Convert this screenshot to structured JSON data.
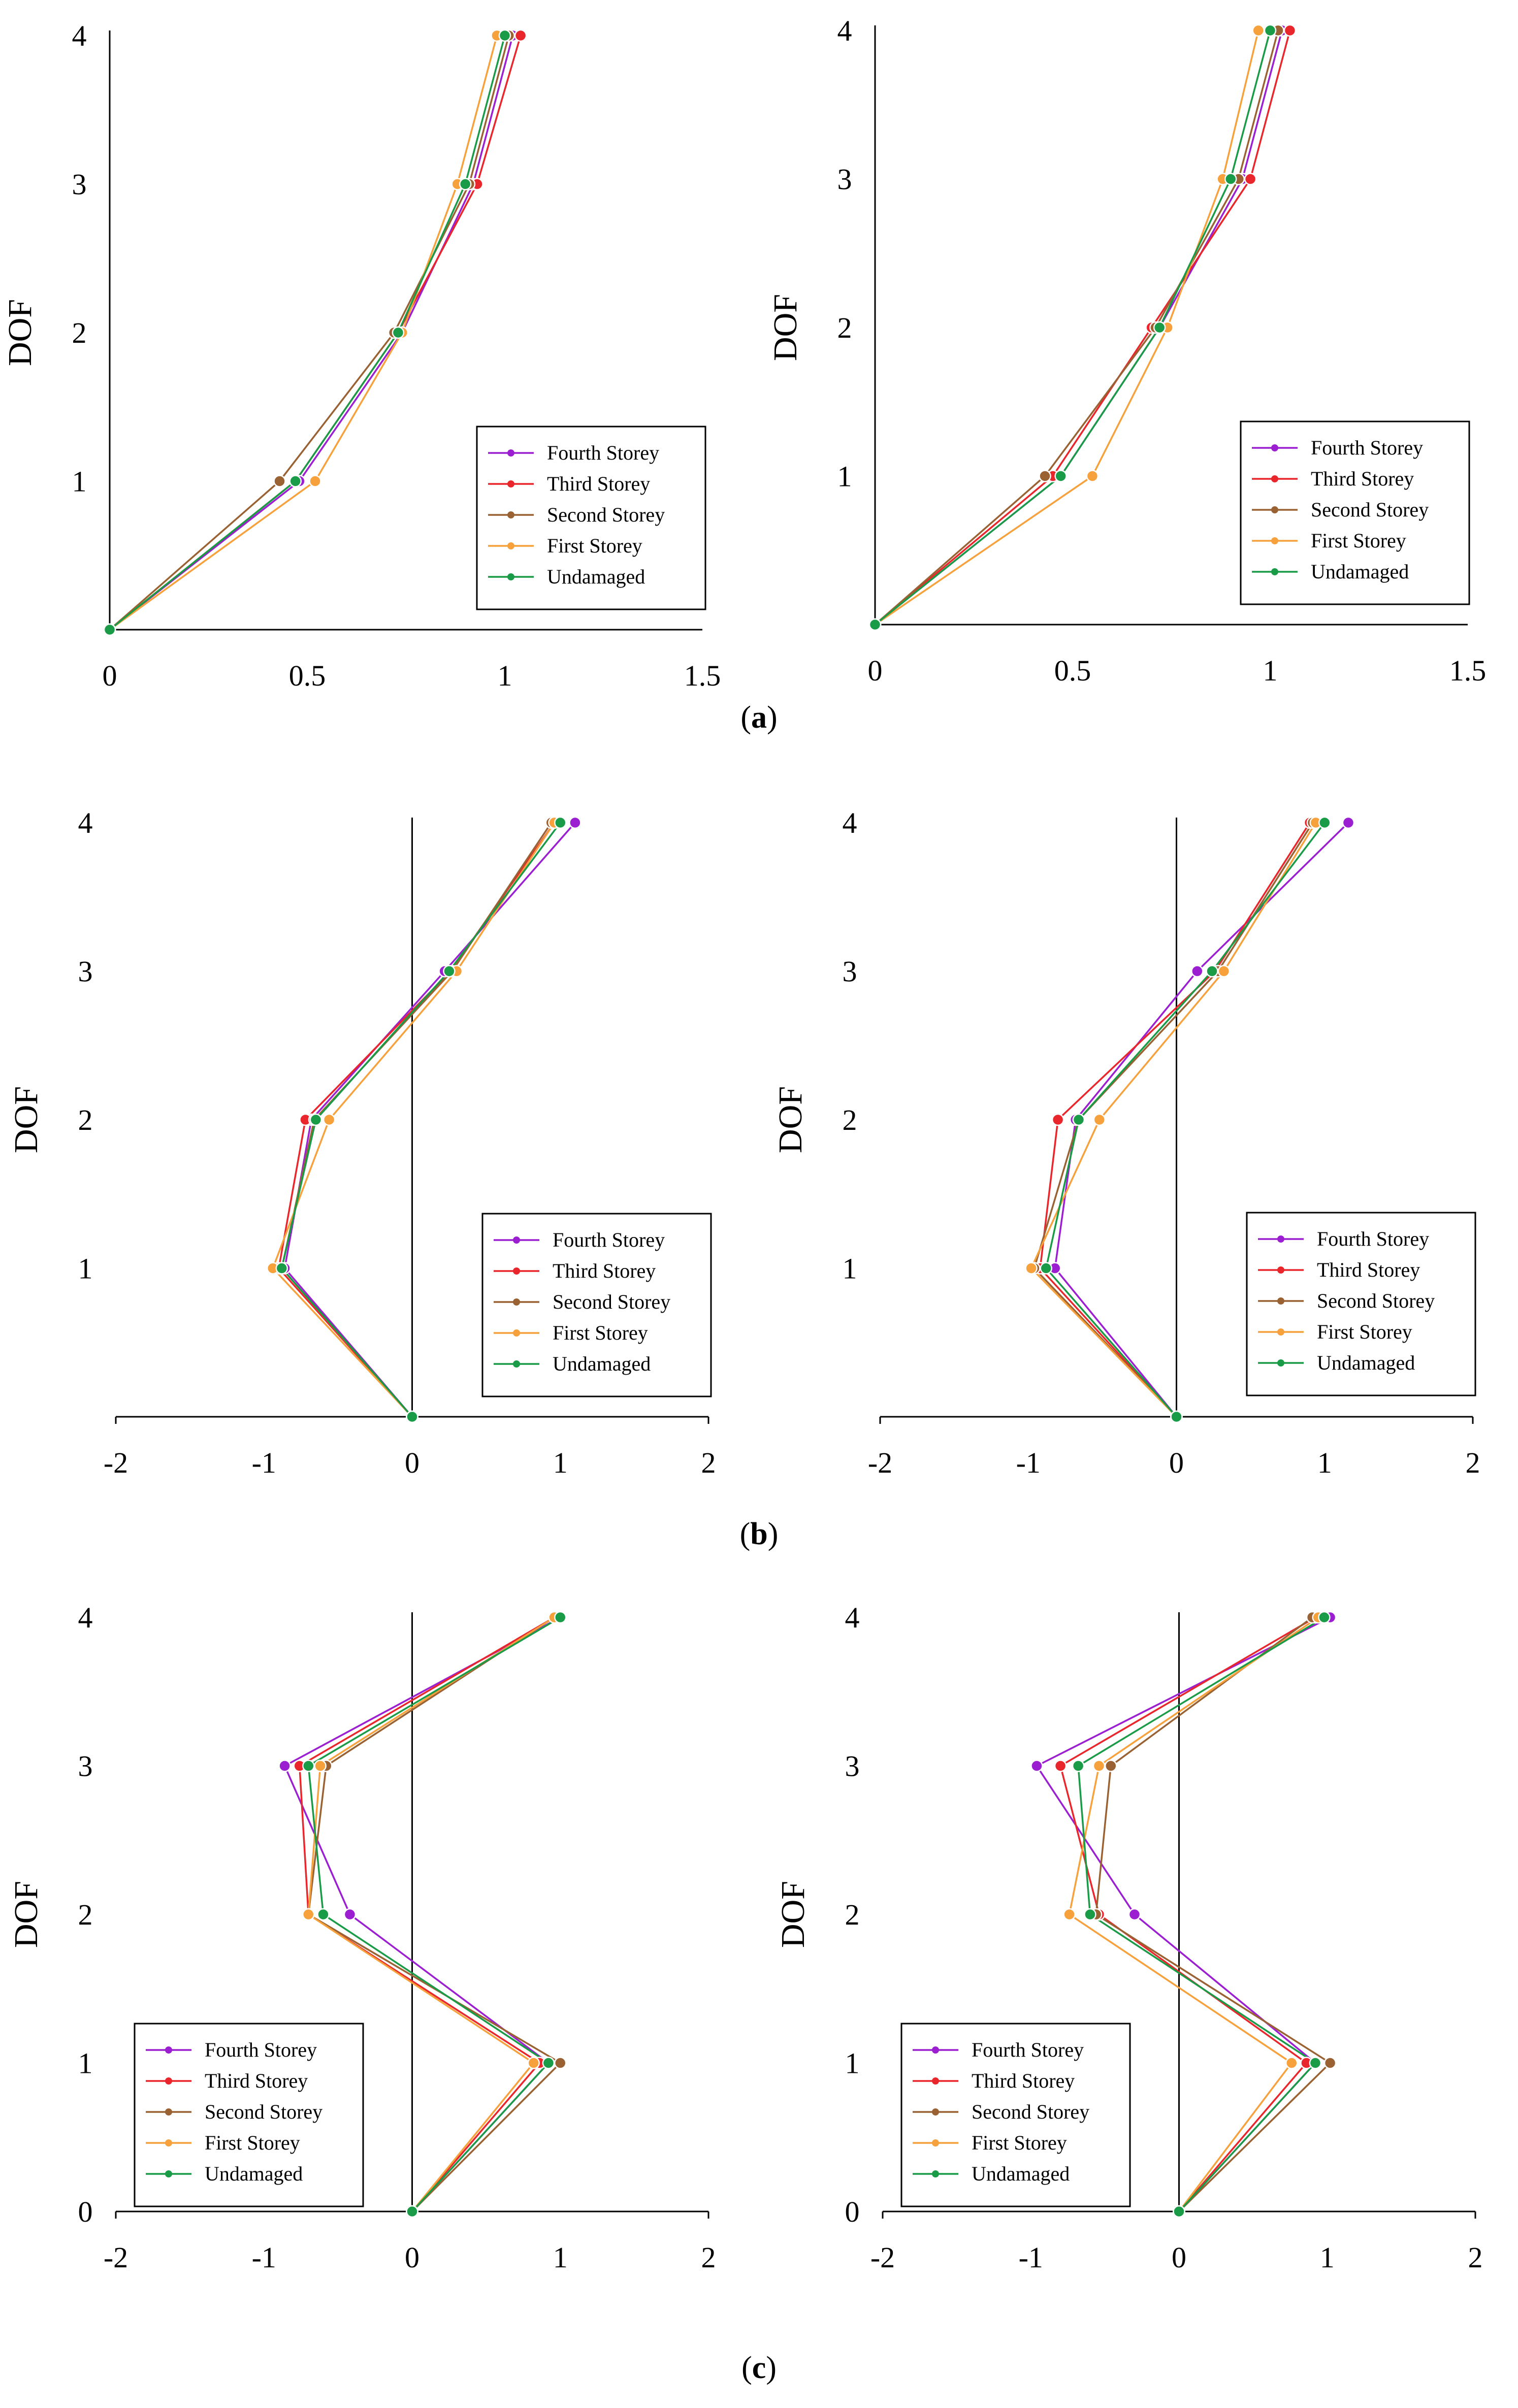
{
  "series_colors": {
    "Fourth Storey": "#9b1fd1",
    "Third Storey": "#e8262b",
    "Second Storey": "#9a6233",
    "First Storey": "#f6a13c",
    "Undamaged": "#1a9b47"
  },
  "captions": [
    {
      "open": "(",
      "letter": "a",
      "close": ")"
    },
    {
      "open": "(",
      "letter": "b",
      "close": ")"
    },
    {
      "open": "(",
      "letter": "c",
      "close": ")"
    }
  ],
  "chart_data": [
    {
      "id": "a-left",
      "type": "line",
      "ylabel": "DOF",
      "xlim": [
        0,
        1.5
      ],
      "xticks": [
        "0",
        "0.5",
        "1",
        "1.5"
      ],
      "ylim": [
        0,
        4
      ],
      "yticks": [
        "1",
        "2",
        "3",
        "4"
      ],
      "legend": "bottom-right",
      "series": [
        {
          "name": "Fourth Storey",
          "points": [
            [
              0,
              0
            ],
            [
              0.48,
              1
            ],
            [
              0.74,
              2
            ],
            [
              0.92,
              3
            ],
            [
              1.02,
              4
            ]
          ]
        },
        {
          "name": "Third Storey",
          "points": [
            [
              0,
              0
            ],
            [
              0.47,
              1
            ],
            [
              0.73,
              2
            ],
            [
              0.93,
              3
            ],
            [
              1.04,
              4
            ]
          ]
        },
        {
          "name": "Second Storey",
          "points": [
            [
              0,
              0
            ],
            [
              0.43,
              1
            ],
            [
              0.72,
              2
            ],
            [
              0.91,
              3
            ],
            [
              1.01,
              4
            ]
          ]
        },
        {
          "name": "First Storey",
          "points": [
            [
              0,
              0
            ],
            [
              0.52,
              1
            ],
            [
              0.74,
              2
            ],
            [
              0.88,
              3
            ],
            [
              0.98,
              4
            ]
          ]
        },
        {
          "name": "Undamaged",
          "points": [
            [
              0,
              0
            ],
            [
              0.47,
              1
            ],
            [
              0.73,
              2
            ],
            [
              0.9,
              3
            ],
            [
              1.0,
              4
            ]
          ]
        }
      ]
    },
    {
      "id": "a-right",
      "type": "line",
      "ylabel": "DOF",
      "xlim": [
        0,
        1.5
      ],
      "xticks": [
        "0",
        "0.5",
        "1",
        "1.5"
      ],
      "ylim": [
        0,
        4
      ],
      "yticks": [
        "1",
        "2",
        "3",
        "4"
      ],
      "legend": "bottom-right",
      "series": [
        {
          "name": "Fourth Storey",
          "points": [
            [
              0,
              0
            ],
            [
              0.47,
              1
            ],
            [
              0.72,
              2
            ],
            [
              0.93,
              3
            ],
            [
              1.03,
              4
            ]
          ]
        },
        {
          "name": "Third Storey",
          "points": [
            [
              0,
              0
            ],
            [
              0.45,
              1
            ],
            [
              0.7,
              2
            ],
            [
              0.95,
              3
            ],
            [
              1.05,
              4
            ]
          ]
        },
        {
          "name": "Second Storey",
          "points": [
            [
              0,
              0
            ],
            [
              0.43,
              1
            ],
            [
              0.71,
              2
            ],
            [
              0.92,
              3
            ],
            [
              1.02,
              4
            ]
          ]
        },
        {
          "name": "First Storey",
          "points": [
            [
              0,
              0
            ],
            [
              0.55,
              1
            ],
            [
              0.74,
              2
            ],
            [
              0.88,
              3
            ],
            [
              0.97,
              4
            ]
          ]
        },
        {
          "name": "Undamaged",
          "points": [
            [
              0,
              0
            ],
            [
              0.47,
              1
            ],
            [
              0.72,
              2
            ],
            [
              0.9,
              3
            ],
            [
              1.0,
              4
            ]
          ]
        }
      ]
    },
    {
      "id": "b-left",
      "type": "line",
      "ylabel": "DOF",
      "xlim": [
        -2,
        2
      ],
      "xticks": [
        "-2",
        "-1",
        "0",
        "1",
        "2"
      ],
      "ylim": [
        0,
        4
      ],
      "yticks": [
        "1",
        "2",
        "3",
        "4"
      ],
      "legend": "bottom-right",
      "series": [
        {
          "name": "Fourth Storey",
          "points": [
            [
              0,
              0
            ],
            [
              -0.86,
              1
            ],
            [
              -0.68,
              2
            ],
            [
              0.22,
              3
            ],
            [
              1.1,
              4
            ]
          ]
        },
        {
          "name": "Third Storey",
          "points": [
            [
              0,
              0
            ],
            [
              -0.9,
              1
            ],
            [
              -0.72,
              2
            ],
            [
              0.26,
              3
            ],
            [
              0.96,
              4
            ]
          ]
        },
        {
          "name": "Second Storey",
          "points": [
            [
              0,
              0
            ],
            [
              -0.88,
              1
            ],
            [
              -0.66,
              2
            ],
            [
              0.27,
              3
            ],
            [
              0.94,
              4
            ]
          ]
        },
        {
          "name": "First Storey",
          "points": [
            [
              0,
              0
            ],
            [
              -0.94,
              1
            ],
            [
              -0.56,
              2
            ],
            [
              0.3,
              3
            ],
            [
              0.96,
              4
            ]
          ]
        },
        {
          "name": "Undamaged",
          "points": [
            [
              0,
              0
            ],
            [
              -0.88,
              1
            ],
            [
              -0.65,
              2
            ],
            [
              0.25,
              3
            ],
            [
              1.0,
              4
            ]
          ]
        }
      ]
    },
    {
      "id": "b-right",
      "type": "line",
      "ylabel": "DOF",
      "xlim": [
        -2,
        2
      ],
      "xticks": [
        "-2",
        "-1",
        "0",
        "1",
        "2"
      ],
      "ylim": [
        0,
        4
      ],
      "yticks": [
        "1",
        "2",
        "3",
        "4"
      ],
      "legend": "bottom-right",
      "series": [
        {
          "name": "Fourth Storey",
          "points": [
            [
              0,
              0
            ],
            [
              -0.82,
              1
            ],
            [
              -0.68,
              2
            ],
            [
              0.14,
              3
            ],
            [
              1.16,
              4
            ]
          ]
        },
        {
          "name": "Third Storey",
          "points": [
            [
              0,
              0
            ],
            [
              -0.92,
              1
            ],
            [
              -0.8,
              2
            ],
            [
              0.26,
              3
            ],
            [
              0.9,
              4
            ]
          ]
        },
        {
          "name": "Second Storey",
          "points": [
            [
              0,
              0
            ],
            [
              -0.96,
              1
            ],
            [
              -0.66,
              2
            ],
            [
              0.28,
              3
            ],
            [
              0.92,
              4
            ]
          ]
        },
        {
          "name": "First Storey",
          "points": [
            [
              0,
              0
            ],
            [
              -0.98,
              1
            ],
            [
              -0.52,
              2
            ],
            [
              0.32,
              3
            ],
            [
              0.94,
              4
            ]
          ]
        },
        {
          "name": "Undamaged",
          "points": [
            [
              0,
              0
            ],
            [
              -0.88,
              1
            ],
            [
              -0.66,
              2
            ],
            [
              0.24,
              3
            ],
            [
              1.0,
              4
            ]
          ]
        }
      ]
    },
    {
      "id": "c-left",
      "type": "line",
      "ylabel": "DOF",
      "xlim": [
        -2,
        2
      ],
      "xticks": [
        "-2",
        "-1",
        "0",
        "1",
        "2"
      ],
      "ylim": [
        0,
        4
      ],
      "yticks": [
        "0",
        "1",
        "2",
        "3",
        "4"
      ],
      "legend": "bottom-left",
      "series": [
        {
          "name": "Fourth Storey",
          "points": [
            [
              0,
              0
            ],
            [
              0.92,
              1
            ],
            [
              -0.42,
              2
            ],
            [
              -0.86,
              3
            ],
            [
              1.0,
              4
            ]
          ]
        },
        {
          "name": "Third Storey",
          "points": [
            [
              0,
              0
            ],
            [
              0.86,
              1
            ],
            [
              -0.7,
              2
            ],
            [
              -0.76,
              3
            ],
            [
              0.96,
              4
            ]
          ]
        },
        {
          "name": "Second Storey",
          "points": [
            [
              0,
              0
            ],
            [
              1.0,
              1
            ],
            [
              -0.7,
              2
            ],
            [
              -0.58,
              3
            ],
            [
              0.96,
              4
            ]
          ]
        },
        {
          "name": "First Storey",
          "points": [
            [
              0,
              0
            ],
            [
              0.82,
              1
            ],
            [
              -0.7,
              2
            ],
            [
              -0.62,
              3
            ],
            [
              0.96,
              4
            ]
          ]
        },
        {
          "name": "Undamaged",
          "points": [
            [
              0,
              0
            ],
            [
              0.92,
              1
            ],
            [
              -0.6,
              2
            ],
            [
              -0.7,
              3
            ],
            [
              1.0,
              4
            ]
          ]
        }
      ]
    },
    {
      "id": "c-right",
      "type": "line",
      "ylabel": "DOF",
      "xlim": [
        -2,
        2
      ],
      "xticks": [
        "-2",
        "-1",
        "0",
        "1",
        "2"
      ],
      "ylim": [
        0,
        4
      ],
      "yticks": [
        "0",
        "1",
        "2",
        "3",
        "4"
      ],
      "legend": "bottom-left",
      "series": [
        {
          "name": "Fourth Storey",
          "points": [
            [
              0,
              0
            ],
            [
              0.92,
              1
            ],
            [
              -0.3,
              2
            ],
            [
              -0.96,
              3
            ],
            [
              1.02,
              4
            ]
          ]
        },
        {
          "name": "Third Storey",
          "points": [
            [
              0,
              0
            ],
            [
              0.86,
              1
            ],
            [
              -0.54,
              2
            ],
            [
              -0.8,
              3
            ],
            [
              0.92,
              4
            ]
          ]
        },
        {
          "name": "Second Storey",
          "points": [
            [
              0,
              0
            ],
            [
              1.02,
              1
            ],
            [
              -0.56,
              2
            ],
            [
              -0.46,
              3
            ],
            [
              0.9,
              4
            ]
          ]
        },
        {
          "name": "First Storey",
          "points": [
            [
              0,
              0
            ],
            [
              0.76,
              1
            ],
            [
              -0.74,
              2
            ],
            [
              -0.54,
              3
            ],
            [
              0.94,
              4
            ]
          ]
        },
        {
          "name": "Undamaged",
          "points": [
            [
              0,
              0
            ],
            [
              0.92,
              1
            ],
            [
              -0.6,
              2
            ],
            [
              -0.68,
              3
            ],
            [
              0.98,
              4
            ]
          ]
        }
      ]
    }
  ]
}
